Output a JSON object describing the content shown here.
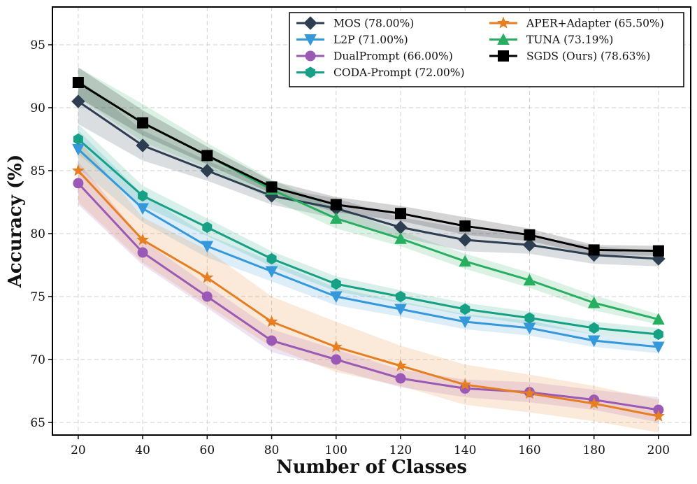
{
  "chart_data": {
    "type": "line",
    "title": "",
    "xlabel": "Number of Classes",
    "ylabel": "Accuracy (%)",
    "x": [
      20,
      40,
      60,
      80,
      100,
      120,
      140,
      160,
      180,
      200
    ],
    "xticks": [
      20,
      40,
      60,
      80,
      100,
      120,
      140,
      160,
      180,
      200
    ],
    "yticks": [
      65,
      70,
      75,
      80,
      85,
      90,
      95
    ],
    "xlim": [
      12,
      210
    ],
    "ylim": [
      64.0,
      98.0
    ],
    "grid": true,
    "legend_position": "top-right",
    "series": [
      {
        "name": "MOS (78.00%)",
        "color": "#2c3e50",
        "marker": "diamond",
        "values": [
          90.5,
          87.0,
          85.0,
          83.0,
          82.0,
          80.5,
          79.5,
          79.1,
          78.3,
          78.0
        ],
        "band": [
          1.8,
          1.2,
          0.8,
          0.7,
          0.8,
          0.8,
          0.9,
          0.7,
          0.7,
          0.6
        ]
      },
      {
        "name": "L2P (71.00%)",
        "color": "#3498db",
        "marker": "triangle-down",
        "values": [
          86.7,
          82.0,
          79.0,
          77.0,
          75.0,
          74.0,
          73.0,
          72.5,
          71.5,
          71.0
        ],
        "band": [
          1.5,
          1.1,
          0.9,
          0.8,
          0.7,
          0.6,
          0.6,
          0.6,
          0.5,
          0.5
        ]
      },
      {
        "name": "DualPrompt (66.00%)",
        "color": "#9b59b6",
        "marker": "circle",
        "values": [
          84.0,
          78.5,
          75.0,
          71.5,
          70.0,
          68.5,
          67.7,
          67.4,
          66.8,
          66.0
        ],
        "band": [
          1.7,
          1.0,
          0.9,
          0.9,
          0.8,
          0.7,
          0.7,
          0.8,
          0.8,
          1.0
        ]
      },
      {
        "name": "CODA-Prompt (72.00%)",
        "color": "#16a085",
        "marker": "hexagon",
        "values": [
          87.5,
          83.0,
          80.5,
          78.0,
          76.0,
          75.0,
          74.0,
          73.3,
          72.5,
          72.0
        ],
        "band": [
          1.2,
          0.8,
          0.7,
          0.6,
          0.6,
          0.5,
          0.5,
          0.5,
          0.5,
          0.5
        ]
      },
      {
        "name": "APER+Adapter (65.50%)",
        "color": "#e67e22",
        "marker": "star",
        "values": [
          85.0,
          79.5,
          76.5,
          73.0,
          71.0,
          69.5,
          68.0,
          67.3,
          66.5,
          65.5
        ],
        "band": [
          2.5,
          1.8,
          2.2,
          2.0,
          2.0,
          1.6,
          1.6,
          1.5,
          1.4,
          1.3
        ]
      },
      {
        "name": "TUNA (73.19%)",
        "color": "#27ae60",
        "marker": "triangle-up",
        "values": [
          92.0,
          88.8,
          86.2,
          83.5,
          81.2,
          79.6,
          77.8,
          76.3,
          74.5,
          73.19
        ],
        "band": [
          1.2,
          1.5,
          1.0,
          0.8,
          0.8,
          0.6,
          0.6,
          0.6,
          0.6,
          0.4
        ]
      },
      {
        "name": "SGDS (Ours) (78.63%)",
        "color": "#000000",
        "marker": "square",
        "values": [
          92.0,
          88.8,
          86.2,
          83.7,
          82.3,
          81.6,
          80.6,
          79.9,
          78.7,
          78.63
        ],
        "band": [
          1.2,
          1.0,
          0.7,
          0.5,
          0.6,
          0.6,
          0.7,
          0.5,
          0.4,
          0.4
        ]
      }
    ]
  }
}
